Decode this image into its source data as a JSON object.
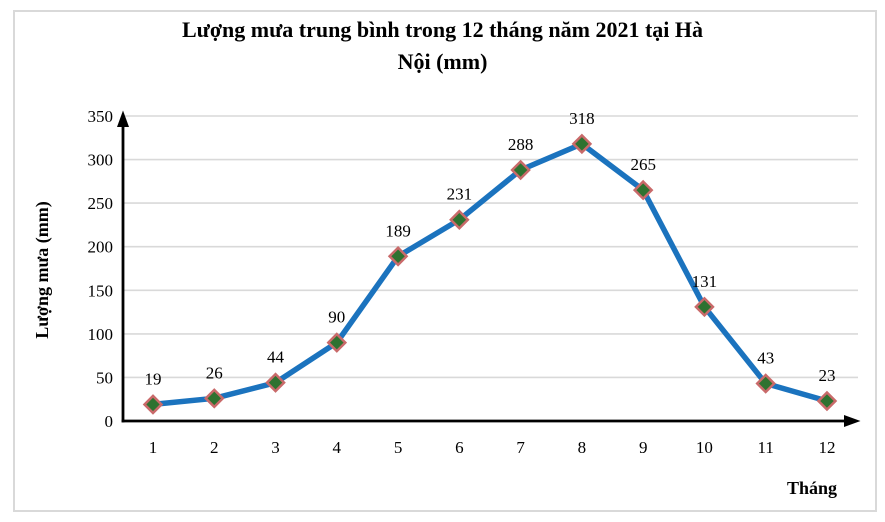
{
  "chart_data": {
    "type": "line",
    "title": "Lượng mưa trung bình trong 12 tháng năm 2021 tại Hà Nội (mm)",
    "title_lines": [
      "Lượng mưa trung bình trong 12 tháng năm 2021 tại Hà",
      "Nội (mm)"
    ],
    "xlabel": "Tháng",
    "ylabel": "Lượng mưa (mm)",
    "categories": [
      1,
      2,
      3,
      4,
      5,
      6,
      7,
      8,
      9,
      10,
      11,
      12
    ],
    "series": [
      {
        "name": "Lượng mưa",
        "values": [
          19,
          26,
          44,
          90,
          189,
          231,
          288,
          318,
          265,
          131,
          43,
          23
        ]
      }
    ],
    "data_labels": true,
    "marker": "diamond",
    "ylim": [
      0,
      350
    ],
    "yticks": [
      0,
      50,
      100,
      150,
      200,
      250,
      300,
      350
    ],
    "grid": "horizontal",
    "legend": "none",
    "axis_arrows": true,
    "colors": {
      "line": "#1b73be",
      "marker_fill": "#2e7230",
      "marker_stroke": "#c96a6a",
      "gridline": "#d9d9d9",
      "axis": "#000000",
      "frame_border": "#d9d9d9",
      "text": "#000000",
      "background": "#ffffff"
    }
  }
}
